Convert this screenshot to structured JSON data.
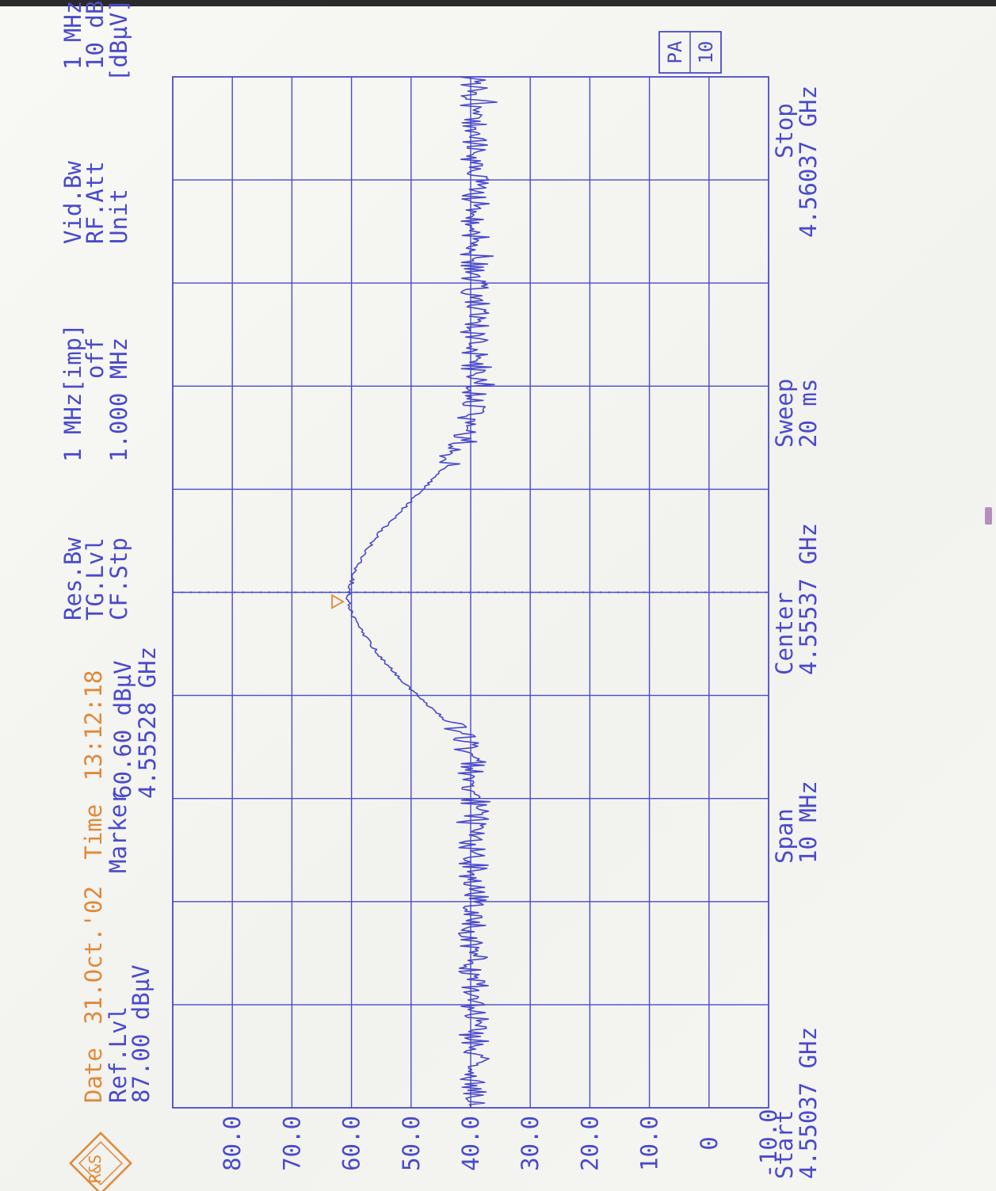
{
  "header": {
    "date_label": "Date",
    "date": "31.Oct.'02",
    "time_label": "Time",
    "time": "13:12:18",
    "ref_lvl_label": "Ref.Lvl",
    "ref_lvl": "87.00 dBµV",
    "marker_label": "Marker",
    "marker_level": "60.60 dBµV",
    "marker_freq": "4.55528 GHz",
    "res_bw_label": "Res.Bw",
    "res_bw": "1 MHz[imp]",
    "tg_lvl_label": "TG.Lvl",
    "tg_lvl": "off",
    "cf_stp_label": "CF.Stp",
    "cf_stp": "1.000 MHz",
    "vid_bw_label": "Vid.Bw",
    "vid_bw": "1 MHz",
    "rf_att_label": "RF.Att",
    "rf_att": "10 dB",
    "unit_label": "Unit",
    "unit": "[dBµV]"
  },
  "footer": {
    "start_label": "Start",
    "start": "4.55037 GHz",
    "span_label": "Span",
    "span": "10 MHz",
    "center_label": "Center",
    "center": "4.55537 GHz",
    "sweep_label": "Sweep",
    "sweep": "20 ms",
    "stop_label": "Stop",
    "stop": "4.56037 GHz"
  },
  "badge": {
    "top": "PA",
    "bottom": "10"
  },
  "colors": {
    "trace": "#4a4acb",
    "accent": "#e0893a",
    "paper": "#f6f6f3"
  },
  "logo": "R&S",
  "chart_data": {
    "type": "line",
    "orientation": "rotated-90-ccw",
    "xlabel": "",
    "ylabel": "",
    "xlim": [
      4.55037,
      4.56037
    ],
    "ylim": [
      -10,
      90
    ],
    "y_ticks": [
      "-10.0",
      "0",
      "10.0",
      "20.0",
      "30.0",
      "40.0",
      "50.0",
      "60.0",
      "70.0",
      "80.0"
    ],
    "grid": true,
    "marker": {
      "x": 4.55528,
      "y": 60.6
    },
    "center_line_x": 4.55537,
    "series": [
      {
        "x": [
          4.55037,
          4.55137,
          4.55237,
          4.55337,
          4.55377,
          4.55397,
          4.55417,
          4.55437,
          4.55457,
          4.55477,
          4.55497,
          4.55517,
          4.55528,
          4.55537,
          4.55557,
          4.55577,
          4.55597,
          4.55617,
          4.55637,
          4.55657,
          4.55677,
          4.55697,
          4.55737,
          4.55837,
          4.55937,
          4.56037
        ],
        "y": [
          39.3,
          39.5,
          39.6,
          39.4,
          40.0,
          41.5,
          45.0,
          49.0,
          52.5,
          55.5,
          58.0,
          60.0,
          60.6,
          60.4,
          59.5,
          57.5,
          55.0,
          51.5,
          48.0,
          44.5,
          42.0,
          40.5,
          39.5,
          39.3,
          39.4,
          39.5
        ],
        "noise_pp": 2.5
      }
    ]
  }
}
